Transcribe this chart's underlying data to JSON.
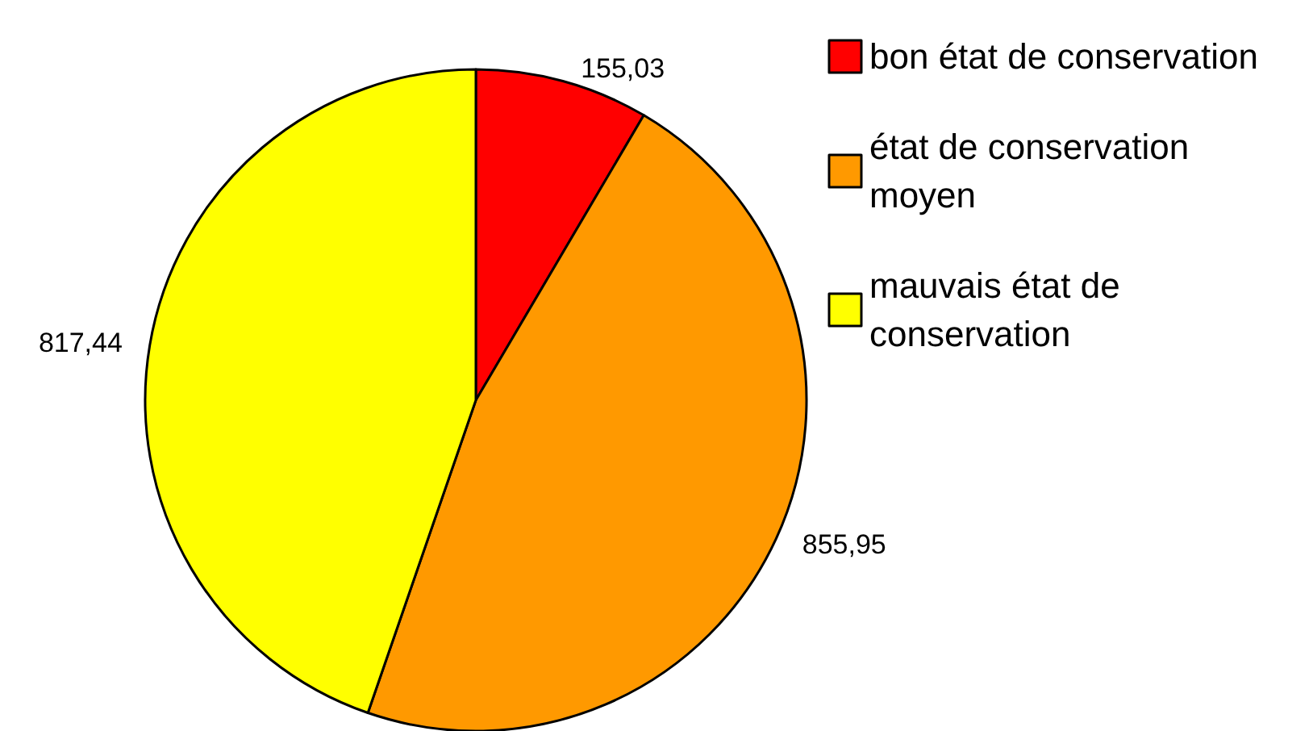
{
  "chart_data": {
    "type": "pie",
    "categories": [
      "bon état de conservation",
      "état de conservation moyen",
      "mauvais état de conservation"
    ],
    "values": [
      155.03,
      855.95,
      817.44
    ],
    "colors": [
      "#ff0000",
      "#ff9900",
      "#ffff00"
    ],
    "value_labels": [
      "155,03",
      "855,95",
      "817,44"
    ],
    "legend": "right"
  }
}
